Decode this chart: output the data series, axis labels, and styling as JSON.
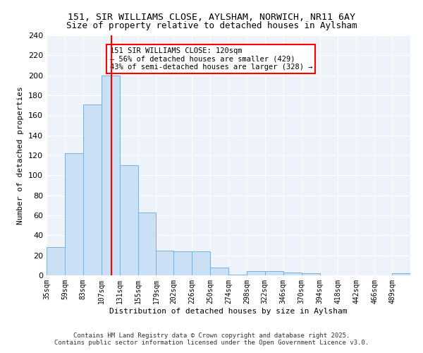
{
  "title1": "151, SIR WILLIAMS CLOSE, AYLSHAM, NORWICH, NR11 6AY",
  "title2": "Size of property relative to detached houses in Aylsham",
  "xlabel": "Distribution of detached houses by size in Aylsham",
  "ylabel": "Number of detached properties",
  "bar_edges": [
    35,
    59,
    83,
    107,
    131,
    155,
    179,
    202,
    226,
    250,
    274,
    298,
    322,
    346,
    370,
    394,
    418,
    442,
    466,
    489,
    513
  ],
  "bar_heights": [
    28,
    122,
    171,
    200,
    110,
    63,
    25,
    24,
    24,
    8,
    1,
    4,
    4,
    3,
    2,
    0,
    0,
    0,
    0,
    2
  ],
  "bar_color": "#cce0f5",
  "bar_edge_color": "#7ab0d8",
  "red_line_x": 120,
  "annotation_title": "151 SIR WILLIAMS CLOSE: 120sqm",
  "annotation_line1": "← 56% of detached houses are smaller (429)",
  "annotation_line2": "43% of semi-detached houses are larger (328) →",
  "ylim": [
    0,
    240
  ],
  "yticks": [
    0,
    20,
    40,
    60,
    80,
    100,
    120,
    140,
    160,
    180,
    200,
    220,
    240
  ],
  "bg_color": "#eef3fa",
  "grid_color": "#ffffff",
  "footer": "Contains HM Land Registry data © Crown copyright and database right 2025.\nContains public sector information licensed under the Open Government Licence v3.0."
}
